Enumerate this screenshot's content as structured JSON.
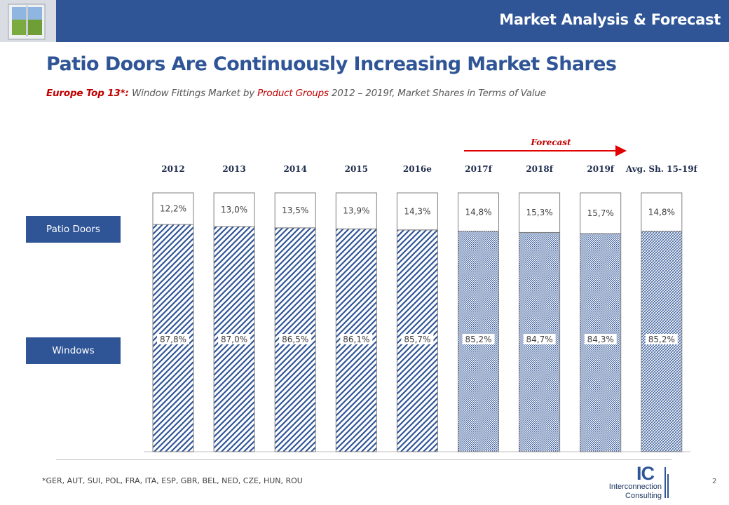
{
  "header": {
    "title": "Market Analysis & Forecast"
  },
  "page_title": "Patio Doors Are Continuously Increasing Market Shares",
  "subtitle": {
    "part1": "Europe Top 13*: ",
    "part2": "Window Fittings Market by ",
    "part3": "Product Groups",
    "part4": " 2012 – 2019f, Market Shares in Terms of Value"
  },
  "labels": {
    "patio": "Patio Doors",
    "windows": "Windows"
  },
  "forecast_label": "Forecast",
  "chart_data": {
    "type": "bar",
    "stacked": true,
    "categories": [
      "2012",
      "2013",
      "2014",
      "2015",
      "2016e",
      "2017f",
      "2018f",
      "2019f",
      "Avg. Sh. 15-19f"
    ],
    "series": [
      {
        "name": "Windows",
        "values": [
          87.8,
          87.0,
          86.5,
          86.1,
          85.7,
          85.2,
          84.7,
          84.3,
          85.2
        ],
        "labels": [
          "87,8%",
          "87,0%",
          "86,5%",
          "86,1%",
          "85,7%",
          "85,2%",
          "84,7%",
          "84,3%",
          "85,2%"
        ]
      },
      {
        "name": "Patio Doors",
        "values": [
          12.2,
          13.0,
          13.5,
          13.9,
          14.3,
          14.8,
          15.3,
          15.7,
          14.8
        ],
        "labels": [
          "12,2%",
          "13,0%",
          "13,5%",
          "13,9%",
          "14,3%",
          "14,8%",
          "15,3%",
          "15,7%",
          "14,8%"
        ]
      }
    ],
    "ylim": [
      0,
      100
    ],
    "forecast_start_index": 5,
    "colors": {
      "windows_pattern": "#2f5597",
      "bar_border": "#7f7f7f"
    }
  },
  "footnote": "*GER, AUT, SUI, POL, FRA, ITA, ESP, GBR, BEL, NED, CZE, HUN, ROU",
  "page_number": "2",
  "logo": {
    "mark": "IC",
    "line1": "Interconnection",
    "line2": "Consulting"
  }
}
